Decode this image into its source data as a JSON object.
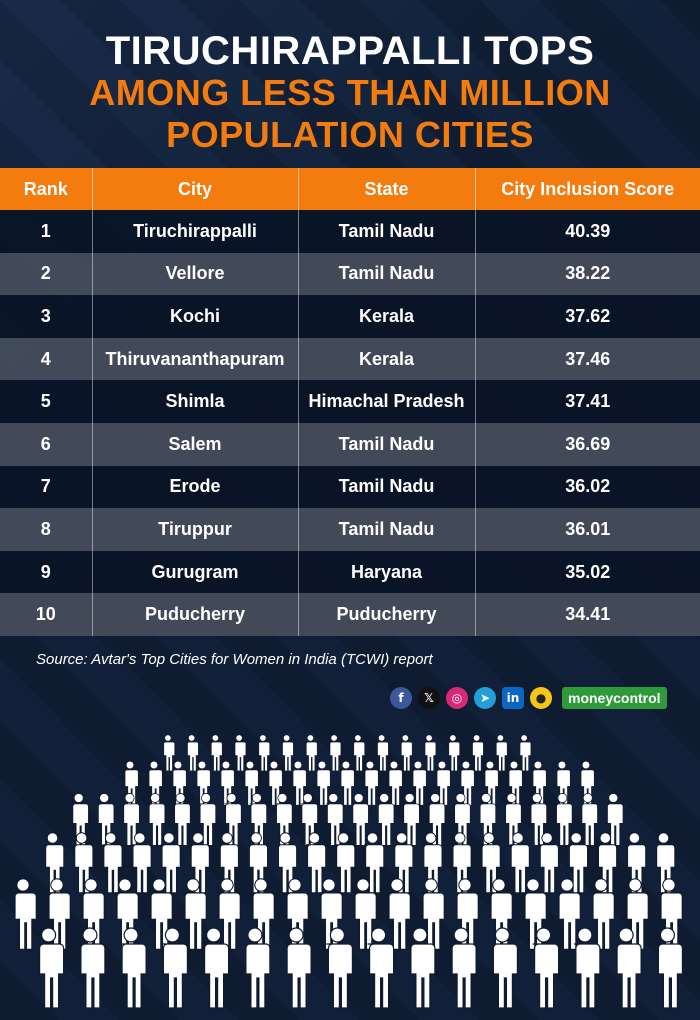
{
  "headline": {
    "line1": "TIRUCHIRAPPALLI TOPS",
    "line2": "AMONG LESS THAN MILLION",
    "line3": "POPULATION CITIES"
  },
  "colors": {
    "accent": "#f47c0f",
    "background": "#0e1b30",
    "row_dark": "#0a1426",
    "row_light": "#464e5c",
    "brand_green": "#2f9a3a"
  },
  "chart_data": {
    "type": "table",
    "title": "TIRUCHIRAPPALLI TOPS AMONG LESS THAN MILLION POPULATION CITIES",
    "columns": [
      "Rank",
      "City",
      "State",
      "City Inclusion Score"
    ],
    "rows": [
      [
        "1",
        "Tiruchirappalli",
        "Tamil Nadu",
        "40.39"
      ],
      [
        "2",
        "Vellore",
        "Tamil Nadu",
        "38.22"
      ],
      [
        "3",
        "Kochi",
        "Kerala",
        "37.62"
      ],
      [
        "4",
        "Thiruvananthapuram",
        "Kerala",
        "37.46"
      ],
      [
        "5",
        "Shimla",
        "Himachal Pradesh",
        "37.41"
      ],
      [
        "6",
        "Salem",
        "Tamil Nadu",
        "36.69"
      ],
      [
        "7",
        "Erode",
        "Tamil Nadu",
        "36.02"
      ],
      [
        "8",
        "Tiruppur",
        "Tamil Nadu",
        "36.01"
      ],
      [
        "9",
        "Gurugram",
        "Haryana",
        "35.02"
      ],
      [
        "10",
        "Puducherry",
        "Puducherry",
        "34.41"
      ]
    ]
  },
  "source": "Source: Avtar's Top Cities for Women in India (TCWI) report",
  "social": {
    "icons": [
      "facebook-icon",
      "x-icon",
      "instagram-icon",
      "telegram-icon",
      "linkedin-icon",
      "koo-icon"
    ],
    "glyphs": [
      "f",
      "𝕏",
      "◎",
      "➤",
      "in",
      "●"
    ],
    "brand": "moneycontrol"
  }
}
